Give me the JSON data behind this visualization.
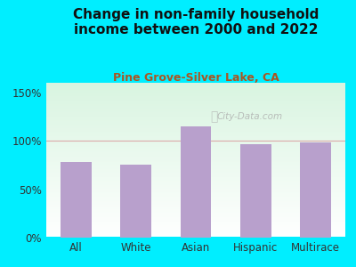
{
  "title": "Change in non-family household\nincome between 2000 and 2022",
  "subtitle": "Pine Grove-Silver Lake, CA",
  "categories": [
    "All",
    "White",
    "Asian",
    "Hispanic",
    "Multirace"
  ],
  "values": [
    78,
    75,
    115,
    97,
    98
  ],
  "bar_color": "#b8a0cc",
  "title_fontsize": 11,
  "subtitle_fontsize": 9,
  "tick_fontsize": 8.5,
  "outer_bg": "#00eeff",
  "ylim": [
    0,
    160
  ],
  "yticks": [
    0,
    50,
    100,
    150
  ],
  "ytick_labels": [
    "0%",
    "50%",
    "100%",
    "150%"
  ],
  "watermark": "City-Data.com",
  "grid_color": "#ddaaaa",
  "title_color": "#111111",
  "subtitle_color": "#aa5522"
}
